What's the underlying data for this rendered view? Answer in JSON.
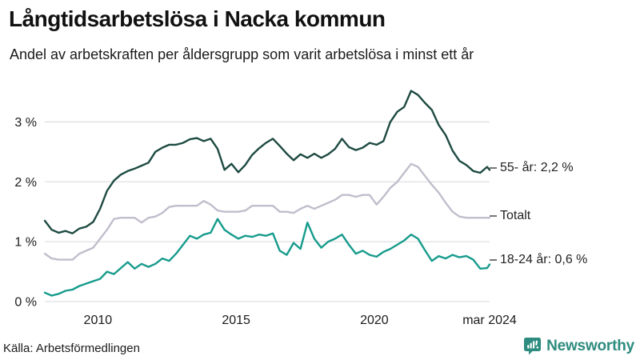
{
  "header": {
    "title": "Långtidsarbetslösa i Nacka kommun",
    "subtitle": "Andel av arbetskraften per åldersgrupp som varit arbetslösa i minst ett år"
  },
  "footer": {
    "source": "Källa: Arbetsförmedlingen",
    "brand_name": "Newsworthy",
    "brand_color": "#2e8b7f",
    "brand_icon": "bar-chart-speech-bubble-icon"
  },
  "colors": {
    "series_55": "#1d4a42",
    "series_total": "#c2bdcc",
    "series_1824": "#169b8c",
    "gridline": "#e0dfe3",
    "text": "#1a1a1a"
  },
  "chart_data": {
    "type": "line",
    "title": "Långtidsarbetslösa i Nacka kommun",
    "subtitle": "Andel av arbetskraften per åldersgrupp som varit arbetslösa i minst ett år",
    "xlabel": "",
    "ylabel": "",
    "x_unit": "decimal_year_monthly_series",
    "xlim": [
      2008.08,
      2024.17
    ],
    "ylim": [
      0,
      3.62
    ],
    "grid": "horizontal",
    "legend_position": "right-end-labels",
    "y_ticks": [
      {
        "value": 0,
        "label": "0 %"
      },
      {
        "value": 1,
        "label": "1 %"
      },
      {
        "value": 2,
        "label": "2 %"
      },
      {
        "value": 3,
        "label": "3 %"
      }
    ],
    "x_ticks": [
      {
        "value": 2010,
        "label": "2010"
      },
      {
        "value": 2015,
        "label": "2015"
      },
      {
        "value": 2020,
        "label": "2020"
      },
      {
        "value": 2024.17,
        "label": "mar 2024"
      }
    ],
    "x": [
      2008.08,
      2008.33,
      2008.58,
      2008.83,
      2009.08,
      2009.33,
      2009.58,
      2009.83,
      2010.08,
      2010.33,
      2010.58,
      2010.83,
      2011.08,
      2011.33,
      2011.58,
      2011.83,
      2012.08,
      2012.33,
      2012.58,
      2012.83,
      2013.08,
      2013.33,
      2013.58,
      2013.83,
      2014.08,
      2014.33,
      2014.58,
      2014.83,
      2015.08,
      2015.33,
      2015.58,
      2015.83,
      2016.08,
      2016.33,
      2016.58,
      2016.83,
      2017.08,
      2017.33,
      2017.58,
      2017.83,
      2018.08,
      2018.33,
      2018.58,
      2018.83,
      2019.08,
      2019.33,
      2019.58,
      2019.83,
      2020.08,
      2020.33,
      2020.58,
      2020.83,
      2021.08,
      2021.33,
      2021.58,
      2021.83,
      2022.08,
      2022.33,
      2022.58,
      2022.83,
      2023.08,
      2023.33,
      2023.58,
      2023.83,
      2024.08,
      2024.17
    ],
    "series": [
      {
        "name": "Totalt",
        "color": "#c2bdcc",
        "end_label": "Totalt",
        "values": [
          0.8,
          0.72,
          0.7,
          0.7,
          0.7,
          0.8,
          0.85,
          0.9,
          1.05,
          1.2,
          1.38,
          1.4,
          1.4,
          1.4,
          1.32,
          1.4,
          1.42,
          1.48,
          1.58,
          1.6,
          1.6,
          1.6,
          1.6,
          1.68,
          1.62,
          1.52,
          1.5,
          1.5,
          1.5,
          1.52,
          1.6,
          1.6,
          1.6,
          1.6,
          1.5,
          1.5,
          1.48,
          1.55,
          1.6,
          1.55,
          1.6,
          1.65,
          1.7,
          1.78,
          1.78,
          1.75,
          1.78,
          1.78,
          1.62,
          1.75,
          1.9,
          2.0,
          2.15,
          2.3,
          2.25,
          2.1,
          1.95,
          1.82,
          1.65,
          1.5,
          1.42,
          1.4,
          1.4,
          1.4,
          1.4,
          1.4
        ]
      },
      {
        "name": "18-24 år",
        "color": "#169b8c",
        "end_label": "18-24 år: 0,6 %",
        "last_value_label": "0,6 %",
        "values": [
          0.15,
          0.1,
          0.13,
          0.18,
          0.2,
          0.26,
          0.3,
          0.34,
          0.38,
          0.5,
          0.46,
          0.56,
          0.66,
          0.55,
          0.63,
          0.58,
          0.63,
          0.72,
          0.68,
          0.8,
          0.95,
          1.1,
          1.05,
          1.12,
          1.15,
          1.38,
          1.2,
          1.12,
          1.05,
          1.1,
          1.08,
          1.12,
          1.1,
          1.14,
          0.85,
          0.78,
          0.98,
          0.88,
          1.32,
          1.05,
          0.9,
          1.0,
          1.05,
          1.12,
          0.95,
          0.8,
          0.85,
          0.78,
          0.75,
          0.83,
          0.88,
          0.95,
          1.02,
          1.12,
          1.05,
          0.86,
          0.68,
          0.76,
          0.72,
          0.78,
          0.74,
          0.76,
          0.7,
          0.55,
          0.56,
          0.62
        ]
      },
      {
        "name": "55- år",
        "color": "#1d4a42",
        "end_label": "55- år: 2,2 %",
        "last_value_label": "2,2 %",
        "values": [
          1.35,
          1.2,
          1.15,
          1.18,
          1.14,
          1.22,
          1.25,
          1.33,
          1.55,
          1.85,
          2.02,
          2.12,
          2.18,
          2.22,
          2.27,
          2.32,
          2.5,
          2.57,
          2.62,
          2.62,
          2.65,
          2.71,
          2.73,
          2.68,
          2.72,
          2.55,
          2.2,
          2.3,
          2.16,
          2.28,
          2.45,
          2.56,
          2.65,
          2.72,
          2.6,
          2.47,
          2.36,
          2.46,
          2.4,
          2.47,
          2.4,
          2.46,
          2.55,
          2.72,
          2.58,
          2.53,
          2.57,
          2.65,
          2.62,
          2.68,
          3.0,
          3.17,
          3.25,
          3.52,
          3.45,
          3.32,
          3.2,
          2.95,
          2.78,
          2.52,
          2.35,
          2.28,
          2.18,
          2.15,
          2.25,
          2.2
        ]
      }
    ]
  }
}
